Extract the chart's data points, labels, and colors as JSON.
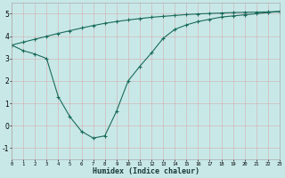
{
  "xlabel": "Humidex (Indice chaleur)",
  "bg_color": "#c8e8e8",
  "grid_color": "#d4b8b8",
  "line_color": "#1a6b5a",
  "xlim": [
    0,
    23
  ],
  "ylim": [
    -1.5,
    5.5
  ],
  "xticks": [
    0,
    1,
    2,
    3,
    4,
    5,
    6,
    7,
    8,
    9,
    10,
    11,
    12,
    13,
    14,
    15,
    16,
    17,
    18,
    19,
    20,
    21,
    22,
    23
  ],
  "yticks": [
    -1,
    0,
    1,
    2,
    3,
    4,
    5
  ],
  "curve1_x": [
    0,
    1,
    2,
    3,
    4,
    5,
    6,
    7,
    8,
    9,
    10,
    11,
    12,
    13,
    14,
    15,
    16,
    17,
    18,
    19,
    20,
    21,
    22,
    23
  ],
  "curve1_y": [
    3.6,
    3.35,
    3.2,
    3.0,
    1.3,
    0.4,
    -0.25,
    -0.55,
    -0.45,
    0.65,
    2.0,
    2.65,
    3.25,
    3.9,
    4.3,
    4.5,
    4.65,
    4.75,
    4.85,
    4.9,
    4.95,
    5.0,
    5.05,
    5.1
  ],
  "curve2_x": [
    0,
    1,
    2,
    3,
    4,
    5,
    6,
    7,
    8,
    9,
    10,
    11,
    12,
    13,
    14,
    15,
    16,
    17,
    18,
    19,
    20,
    21,
    22,
    23
  ],
  "curve2_y": [
    3.6,
    3.73,
    3.86,
    3.99,
    4.12,
    4.24,
    4.36,
    4.47,
    4.57,
    4.65,
    4.72,
    4.78,
    4.84,
    4.88,
    4.92,
    4.96,
    4.99,
    5.01,
    5.03,
    5.05,
    5.06,
    5.07,
    5.08,
    5.1
  ]
}
